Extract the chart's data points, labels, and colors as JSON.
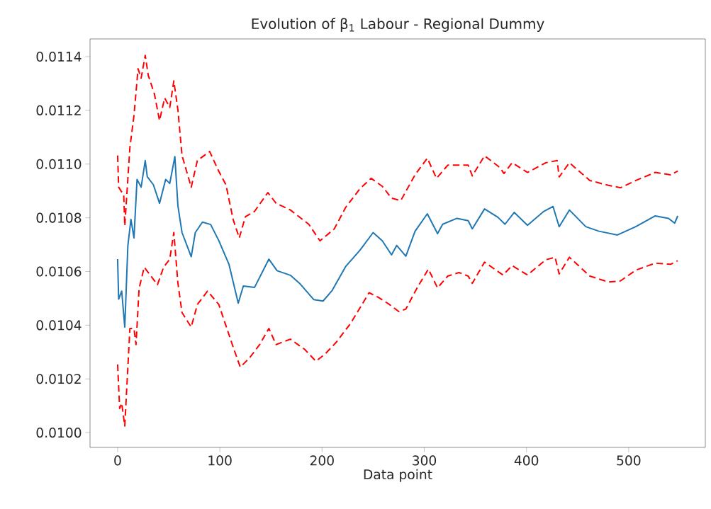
{
  "chart_data": {
    "type": "line",
    "title": "Evolution of β$_{1}$ Labour - Regional Dummy",
    "xlabel": "Data point",
    "xlim": [
      -27,
      575
    ],
    "ylim": [
      0.009945,
      0.011466
    ],
    "xticks": [
      0,
      100,
      200,
      300,
      400,
      500
    ],
    "yticks": [
      {
        "value": 0.01,
        "label": "0.0100"
      },
      {
        "value": 0.0102,
        "label": "0.0102"
      },
      {
        "value": 0.0104,
        "label": "0.0104"
      },
      {
        "value": 0.0106,
        "label": "0.0106"
      },
      {
        "value": 0.0108,
        "label": "0.0108"
      },
      {
        "value": 0.011,
        "label": "0.0110"
      },
      {
        "value": 0.0112,
        "label": "0.0112"
      },
      {
        "value": 0.0114,
        "label": "0.0114"
      }
    ],
    "grid": false,
    "marker": "none",
    "series": [
      {
        "color": "#1f77b4",
        "line_style": "solid",
        "x": [
          0,
          1,
          4,
          7,
          10,
          13,
          16,
          19,
          23,
          27,
          29,
          35,
          41,
          47,
          51,
          56,
          59,
          63,
          72,
          76,
          83,
          91,
          99,
          109,
          118,
          123,
          134,
          148,
          156,
          169,
          178,
          192,
          201,
          210,
          223,
          237,
          250,
          259,
          268,
          273,
          282,
          291,
          303,
          313,
          318,
          332,
          343,
          347,
          359,
          372,
          379,
          388,
          401,
          417,
          426,
          432,
          442,
          458,
          471,
          489,
          507,
          526,
          539,
          545,
          548
        ],
        "values": [
          0.010646,
          0.010497,
          0.010527,
          0.010393,
          0.010695,
          0.010794,
          0.010725,
          0.010943,
          0.010914,
          0.011013,
          0.010953,
          0.010923,
          0.010854,
          0.010943,
          0.010928,
          0.011028,
          0.010844,
          0.010745,
          0.010655,
          0.010745,
          0.010784,
          0.010775,
          0.010715,
          0.010626,
          0.010482,
          0.010546,
          0.010541,
          0.010646,
          0.010603,
          0.010586,
          0.010556,
          0.010495,
          0.01049,
          0.01053,
          0.010618,
          0.010679,
          0.010745,
          0.010714,
          0.010662,
          0.010697,
          0.010657,
          0.01075,
          0.010815,
          0.010741,
          0.010776,
          0.010798,
          0.010789,
          0.010759,
          0.010833,
          0.010802,
          0.010776,
          0.01082,
          0.010772,
          0.010824,
          0.010842,
          0.010767,
          0.010829,
          0.010767,
          0.01075,
          0.010736,
          0.010767,
          0.010807,
          0.010798,
          0.01078,
          0.010807
        ]
      },
      {
        "color": "#ff0000",
        "line_style": "dashed",
        "x": [
          0,
          1,
          6,
          7,
          12,
          16,
          20,
          23,
          27,
          30,
          36,
          41,
          46,
          51,
          55,
          59,
          63,
          72,
          78,
          90,
          99,
          106,
          113,
          119,
          125,
          134,
          147,
          155,
          169,
          187,
          198,
          212,
          223,
          237,
          248,
          259,
          268,
          277,
          291,
          303,
          312,
          323,
          343,
          347,
          359,
          374,
          378,
          386,
          401,
          419,
          430,
          432,
          442,
          462,
          480,
          492,
          507,
          526,
          541,
          548
        ],
        "values": [
          0.011032,
          0.010914,
          0.010884,
          0.01077,
          0.011062,
          0.011181,
          0.011355,
          0.01132,
          0.011405,
          0.01133,
          0.011261,
          0.011162,
          0.011246,
          0.011211,
          0.01131,
          0.011201,
          0.011032,
          0.010914,
          0.011013,
          0.011047,
          0.010973,
          0.010923,
          0.010794,
          0.010725,
          0.010804,
          0.010824,
          0.010894,
          0.010854,
          0.010829,
          0.010776,
          0.010714,
          0.010759,
          0.010838,
          0.010908,
          0.010947,
          0.010917,
          0.010873,
          0.010864,
          0.01096,
          0.011022,
          0.010947,
          0.010996,
          0.010996,
          0.010956,
          0.011031,
          0.010987,
          0.010965,
          0.011005,
          0.010969,
          0.011005,
          0.011013,
          0.010952,
          0.011005,
          0.010939,
          0.010921,
          0.010912,
          0.010939,
          0.010969,
          0.01096,
          0.010974
        ]
      },
      {
        "color": "#ff0000",
        "line_style": "dashed",
        "x": [
          0,
          2,
          4,
          7,
          12,
          16,
          18,
          21,
          26,
          32,
          39,
          45,
          51,
          55,
          59,
          63,
          72,
          78,
          88,
          99,
          106,
          114,
          120,
          129,
          139,
          148,
          155,
          169,
          183,
          194,
          203,
          214,
          228,
          246,
          255,
          266,
          275,
          282,
          293,
          304,
          313,
          323,
          334,
          343,
          347,
          359,
          377,
          386,
          401,
          419,
          428,
          432,
          442,
          462,
          480,
          492,
          507,
          526,
          541,
          548
        ],
        "values": [
          0.010254,
          0.01009,
          0.01011,
          0.010025,
          0.010388,
          0.010388,
          0.010328,
          0.010537,
          0.010616,
          0.010586,
          0.010551,
          0.010616,
          0.010646,
          0.010745,
          0.010556,
          0.010447,
          0.010393,
          0.010477,
          0.010527,
          0.010477,
          0.010398,
          0.010308,
          0.010244,
          0.010278,
          0.010328,
          0.010388,
          0.010328,
          0.010348,
          0.01031,
          0.010266,
          0.010293,
          0.010337,
          0.010407,
          0.010521,
          0.010504,
          0.010477,
          0.010451,
          0.01046,
          0.010539,
          0.010609,
          0.010539,
          0.010583,
          0.010596,
          0.010583,
          0.010556,
          0.010635,
          0.010587,
          0.010622,
          0.010587,
          0.010644,
          0.010653,
          0.010591,
          0.010653,
          0.010583,
          0.010561,
          0.010565,
          0.010605,
          0.010631,
          0.010627,
          0.01064
        ]
      }
    ]
  }
}
